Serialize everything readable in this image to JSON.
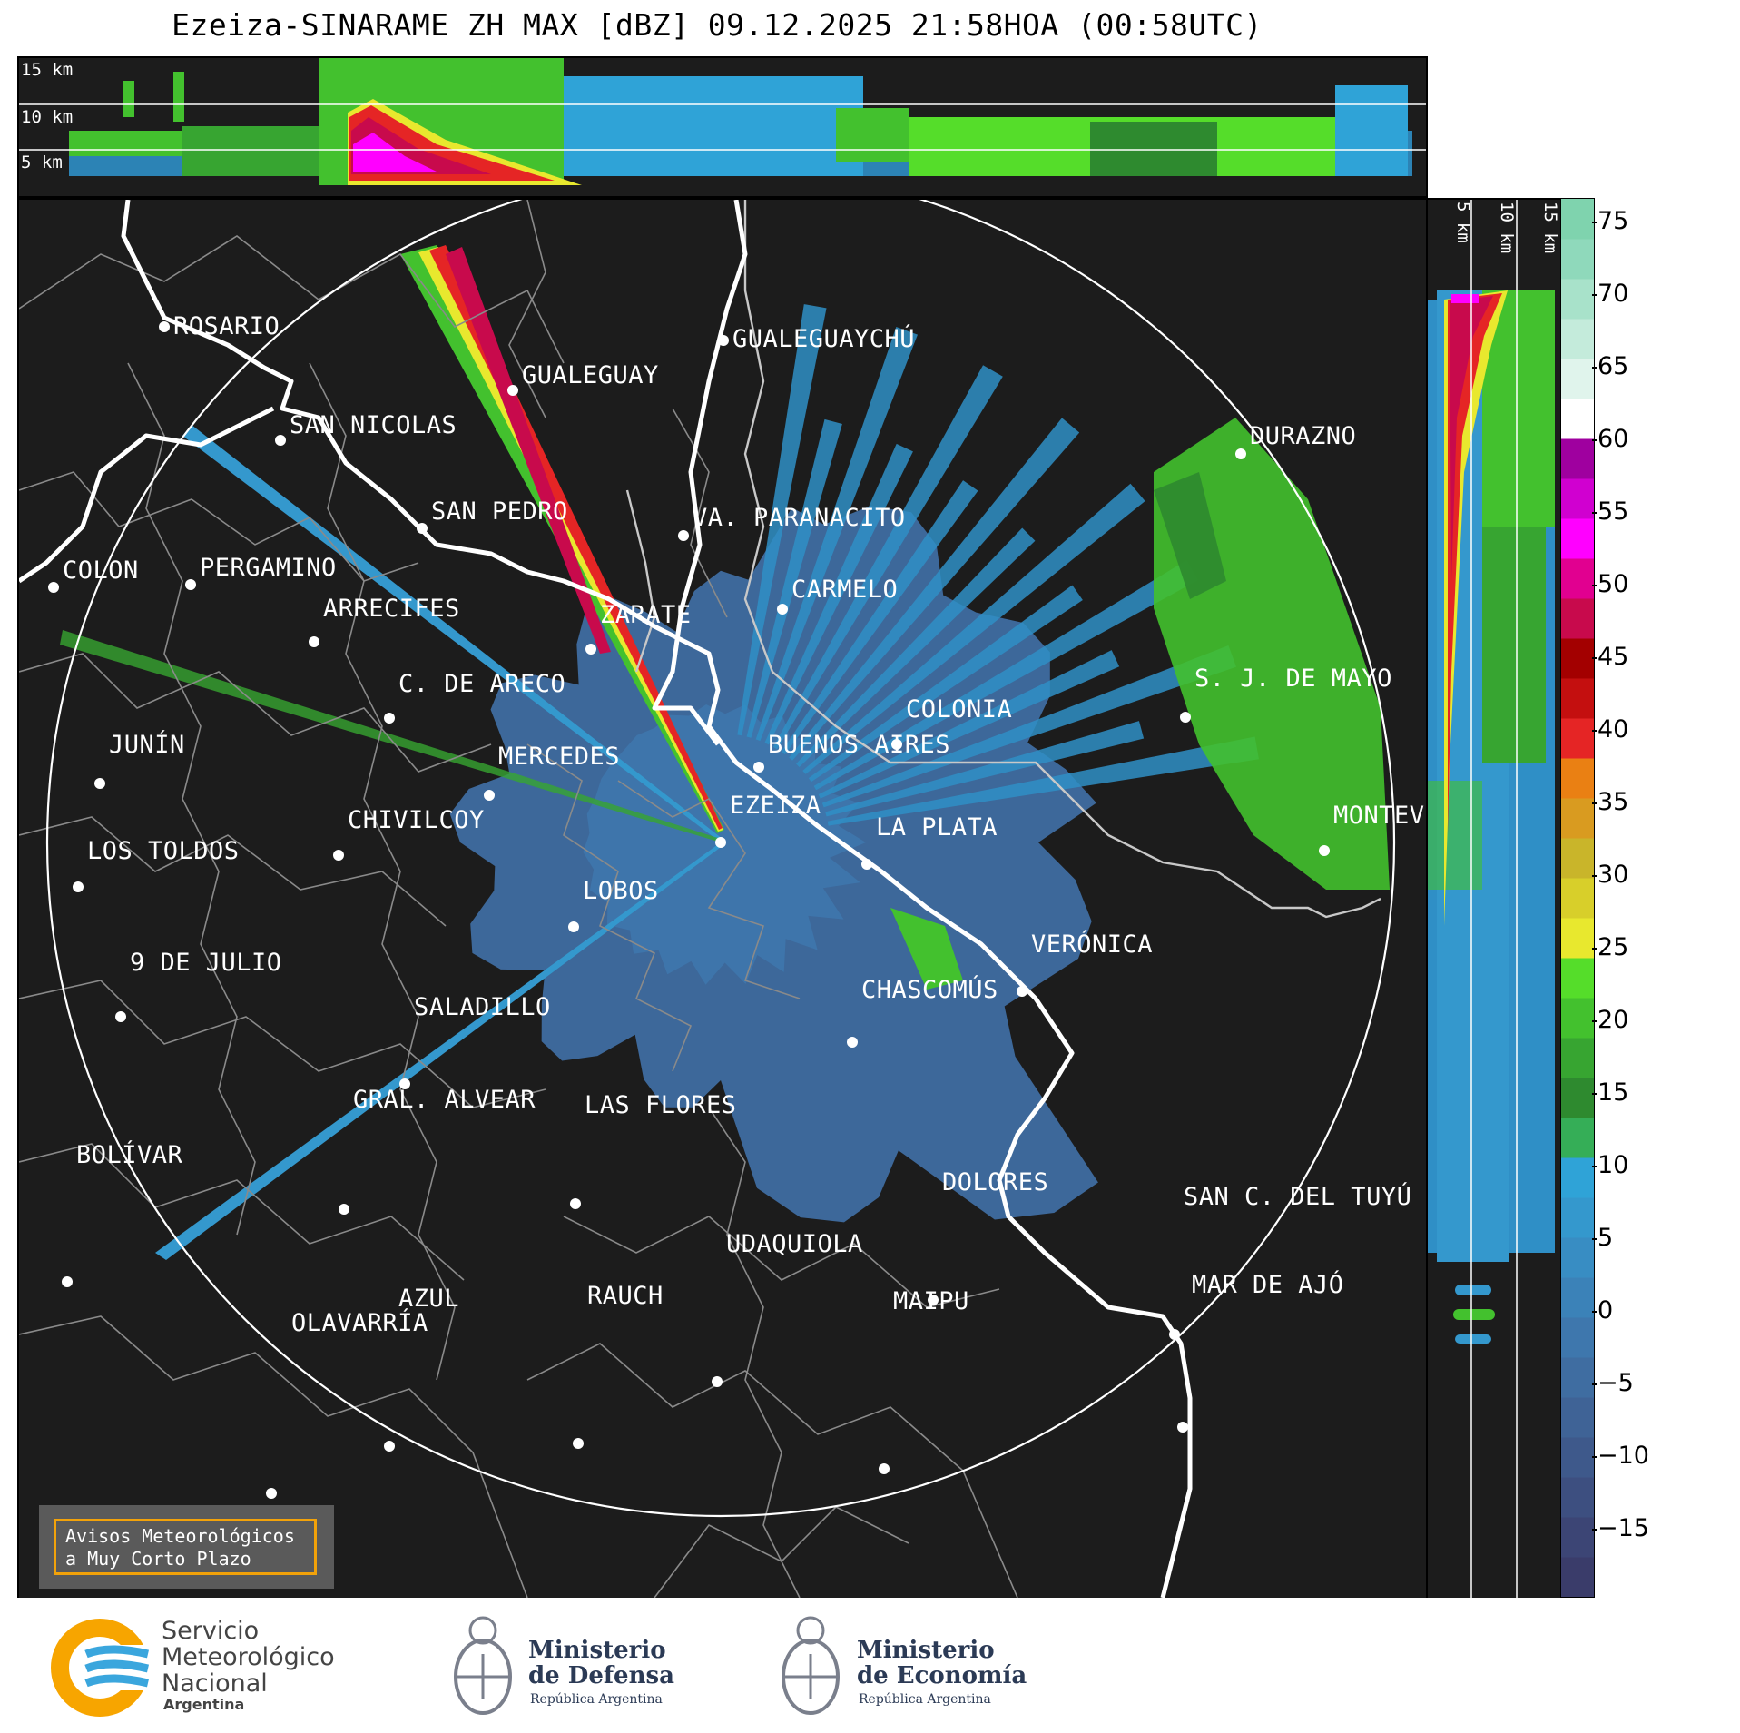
{
  "title": "Ezeiza-SINARAME ZH MAX [dBZ] 09.12.2025 21:58HOA (00:58UTC)",
  "altitude_labels": {
    "top": [
      "15 km",
      "10 km",
      "5 km"
    ],
    "right": [
      "5 km",
      "10 km",
      "15 km"
    ]
  },
  "cities": [
    {
      "name": "ROSARIO",
      "dot": [
        160,
        140
      ],
      "lbl": [
        170,
        124
      ]
    },
    {
      "name": "GUALEGUAYCHÚ",
      "dot": [
        776,
        155
      ],
      "lbl": [
        786,
        138
      ]
    },
    {
      "name": "GUALEGUAY",
      "dot": [
        544,
        210
      ],
      "lbl": [
        554,
        178
      ]
    },
    {
      "name": "SAN NICOLAS",
      "dot": [
        288,
        265
      ],
      "lbl": [
        298,
        233
      ]
    },
    {
      "name": "DURAZNO",
      "dot": [
        1346,
        280
      ],
      "lbl": [
        1356,
        245
      ]
    },
    {
      "name": "SAN PEDRO",
      "dot": [
        444,
        362
      ],
      "lbl": [
        454,
        328
      ]
    },
    {
      "name": "VA. PARANACITO",
      "dot": [
        732,
        370
      ],
      "lbl": [
        742,
        335
      ]
    },
    {
      "name": "COLON",
      "dot": [
        38,
        427
      ],
      "lbl": [
        48,
        393
      ]
    },
    {
      "name": "PERGAMINO",
      "dot": [
        189,
        424
      ],
      "lbl": [
        199,
        390
      ]
    },
    {
      "name": "CARMELO",
      "dot": [
        841,
        451
      ],
      "lbl": [
        851,
        414
      ]
    },
    {
      "name": "ARRECIFES",
      "dot": [
        325,
        487
      ],
      "lbl": [
        335,
        435
      ]
    },
    {
      "name": "ZARATE",
      "dot": [
        630,
        495
      ],
      "lbl": [
        640,
        442
      ]
    },
    {
      "name": "C. DE ARECO",
      "dot": [
        408,
        571
      ],
      "lbl": [
        418,
        518
      ]
    },
    {
      "name": "S. J. DE MAYO",
      "dot": [
        1285,
        570
      ],
      "lbl": [
        1295,
        512
      ]
    },
    {
      "name": "COLONIA",
      "dot": [
        967,
        600
      ],
      "lbl": [
        977,
        546
      ]
    },
    {
      "name": "BUENOS AIRES",
      "dot": [
        815,
        625
      ],
      "lbl": [
        825,
        585
      ]
    },
    {
      "name": "JUNÍN",
      "dot": [
        89,
        643
      ],
      "lbl": [
        99,
        585
      ]
    },
    {
      "name": "MERCEDES",
      "dot": [
        518,
        656
      ],
      "lbl": [
        528,
        598
      ]
    },
    {
      "name": "CHIVILCOY",
      "dot": [
        352,
        722
      ],
      "lbl": [
        362,
        668
      ]
    },
    {
      "name": "EZEIZA",
      "dot": [
        773,
        708
      ],
      "lbl": [
        783,
        652
      ]
    },
    {
      "name": "MONTEVIDEO",
      "dot": [
        1438,
        717
      ],
      "lbl": [
        1448,
        663
      ]
    },
    {
      "name": "LA PLATA",
      "dot": [
        934,
        732
      ],
      "lbl": [
        944,
        676
      ]
    },
    {
      "name": "LOS TOLDOS",
      "dot": [
        65,
        757
      ],
      "lbl": [
        75,
        702
      ]
    },
    {
      "name": "LOBOS",
      "dot": [
        611,
        801
      ],
      "lbl": [
        621,
        746
      ]
    },
    {
      "name": "VERÓNICA",
      "dot": [
        1105,
        872
      ],
      "lbl": [
        1115,
        805
      ]
    },
    {
      "name": "9 DE JULIO",
      "dot": [
        112,
        900
      ],
      "lbl": [
        122,
        825
      ]
    },
    {
      "name": "CHASCOMÚS",
      "dot": [
        918,
        928
      ],
      "lbl": [
        928,
        855
      ]
    },
    {
      "name": "SALADILLO",
      "dot": [
        425,
        974
      ],
      "lbl": [
        435,
        874
      ]
    },
    {
      "name": "GRAL. ALVEAR",
      "dot": [
        358,
        1112
      ],
      "lbl": [
        368,
        976
      ]
    },
    {
      "name": "LAS FLORES",
      "dot": [
        613,
        1106
      ],
      "lbl": [
        623,
        982
      ]
    },
    {
      "name": "BOLÍVAR",
      "dot": [
        53,
        1192
      ],
      "lbl": [
        63,
        1037
      ]
    },
    {
      "name": "DOLORES",
      "dot": [
        1007,
        1212
      ],
      "lbl": [
        1017,
        1067
      ]
    },
    {
      "name": "SAN C. DEL TUYÚ",
      "dot": [
        1273,
        1250
      ],
      "lbl": [
        1283,
        1083
      ]
    },
    {
      "name": "UDAQUIOLA",
      "dot": [
        769,
        1302
      ],
      "lbl": [
        779,
        1135
      ]
    },
    {
      "name": "MAR DE AJÓ",
      "dot": [
        1282,
        1352
      ],
      "lbl": [
        1292,
        1180
      ]
    },
    {
      "name": "AZUL",
      "dot": [
        408,
        1373
      ],
      "lbl": [
        418,
        1195
      ]
    },
    {
      "name": "RAUCH",
      "dot": [
        616,
        1370
      ],
      "lbl": [
        626,
        1192
      ]
    },
    {
      "name": "MAIPU",
      "dot": [
        953,
        1398
      ],
      "lbl": [
        963,
        1198
      ]
    },
    {
      "name": "OLAVARRÍA",
      "dot": [
        278,
        1425
      ],
      "lbl": [
        300,
        1222
      ]
    }
  ],
  "colorbar": {
    "ticks": [
      "75",
      "70",
      "65",
      "60",
      "55",
      "50",
      "45",
      "40",
      "35",
      "30",
      "25",
      "20",
      "15",
      "10",
      "5",
      "0",
      "−5",
      "−10",
      "−15"
    ],
    "colors": [
      "#3a3c6a",
      "#3c4575",
      "#3d4f80",
      "#3e598b",
      "#3f6396",
      "#3f6da1",
      "#3e77ad",
      "#3b82b8",
      "#388dc3",
      "#3498cd",
      "#2fa3d7",
      "#35ae57",
      "#2e8a2f",
      "#37a531",
      "#43c12e",
      "#55dd2a",
      "#e8e82e",
      "#d8cf2a",
      "#c9b52a",
      "#d99b20",
      "#ea8013",
      "#e52525",
      "#c40f0f",
      "#a30000",
      "#c80a4c",
      "#e10090",
      "#ff00ff",
      "#d000d0",
      "#9f009f",
      "#ffffff",
      "#e0f4ec",
      "#c4ebdb",
      "#a8e2ca",
      "#8fd9bb",
      "#7fd3ae"
    ]
  },
  "warning_box": {
    "line1": "Avisos Meteorológicos",
    "line2": "a Muy Corto Plazo"
  },
  "footer": {
    "smn": [
      "Servicio",
      "Meteorológico",
      "Nacional"
    ],
    "smn_country": "Argentina",
    "defensa": [
      "Ministerio",
      "de Defensa"
    ],
    "defensa_sub": "República Argentina",
    "economia": [
      "Ministerio",
      "de Economía"
    ],
    "economia_sub": "República Argentina"
  }
}
